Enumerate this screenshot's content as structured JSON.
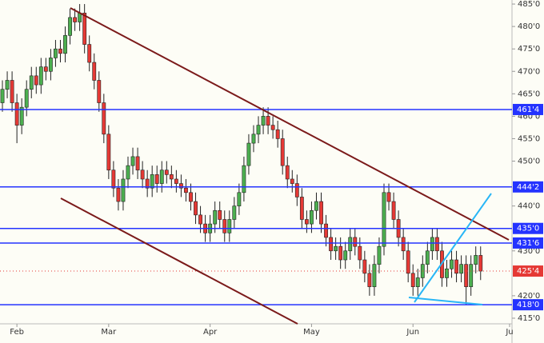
{
  "chart_data": {
    "type": "candlestick",
    "categories": [
      null,
      null,
      null,
      "Feb",
      null,
      null,
      null,
      null,
      null,
      null,
      null,
      null,
      null,
      null,
      null,
      null,
      null,
      null,
      null,
      null,
      null,
      null,
      "Mar",
      null,
      null,
      null,
      null,
      null,
      null,
      null,
      null,
      null,
      null,
      null,
      null,
      null,
      null,
      null,
      null,
      null,
      null,
      null,
      null,
      "Apr",
      null,
      null,
      null,
      null,
      null,
      null,
      null,
      null,
      null,
      null,
      null,
      null,
      null,
      null,
      null,
      null,
      null,
      null,
      null,
      null,
      "May",
      null,
      null,
      null,
      null,
      null,
      null,
      null,
      null,
      null,
      null,
      null,
      null,
      null,
      null,
      null,
      null,
      null,
      null,
      null,
      null,
      "Jun",
      null,
      null,
      null,
      null,
      null,
      null,
      null,
      null,
      null,
      null,
      null,
      null,
      null,
      null,
      null,
      null,
      null,
      null,
      null,
      "Ju"
    ],
    "open": [
      463,
      466,
      468,
      463,
      458,
      462,
      466,
      469,
      467,
      471,
      470,
      473,
      475,
      474,
      478,
      482,
      481,
      483,
      476,
      472,
      468,
      463,
      456,
      448,
      444,
      441,
      446,
      449,
      451,
      448,
      446,
      444,
      447,
      445,
      448,
      447,
      446,
      445,
      444,
      443,
      441,
      438,
      436,
      434,
      436,
      439,
      437,
      434,
      437,
      440,
      443,
      449,
      454,
      456,
      458,
      460,
      458,
      457,
      455,
      449,
      446,
      445,
      442,
      437,
      436,
      439,
      441,
      436,
      433,
      430,
      431,
      428,
      430,
      433,
      431,
      428,
      425,
      422,
      427,
      431,
      443,
      441,
      437,
      433,
      430,
      425,
      422,
      424,
      427,
      430,
      433,
      430,
      424,
      426,
      428,
      425,
      427,
      422,
      427,
      429,
      null,
      null,
      null,
      null,
      null,
      null
    ],
    "high": [
      468,
      470,
      470,
      465,
      464,
      468,
      471,
      471,
      473,
      473,
      475,
      477,
      477,
      480,
      484,
      484,
      485,
      485,
      478,
      474,
      470,
      465,
      458,
      450,
      446,
      448,
      451,
      453,
      453,
      450,
      448,
      449,
      449,
      450,
      450,
      449,
      448,
      447,
      446,
      445,
      443,
      440,
      438,
      438,
      441,
      441,
      439,
      439,
      442,
      445,
      451,
      456,
      458,
      460,
      462,
      462,
      460,
      459,
      457,
      451,
      448,
      447,
      444,
      439,
      441,
      443,
      443,
      438,
      435,
      433,
      433,
      432,
      435,
      435,
      433,
      430,
      427,
      429,
      433,
      445,
      445,
      443,
      439,
      435,
      432,
      427,
      426,
      429,
      432,
      435,
      435,
      432,
      428,
      430,
      430,
      429,
      429,
      429,
      431,
      431,
      null,
      null,
      null,
      null,
      null,
      null
    ],
    "low": [
      461,
      464,
      461,
      454,
      456,
      460,
      464,
      465,
      465,
      468,
      468,
      471,
      472,
      472,
      476,
      479,
      479,
      474,
      470,
      466,
      461,
      454,
      446,
      442,
      439,
      439,
      444,
      447,
      446,
      444,
      442,
      442,
      443,
      443,
      445,
      444,
      443,
      442,
      441,
      439,
      436,
      434,
      432,
      432,
      434,
      435,
      432,
      432,
      435,
      438,
      441,
      447,
      452,
      454,
      456,
      456,
      455,
      453,
      447,
      444,
      443,
      440,
      435,
      434,
      434,
      437,
      434,
      431,
      428,
      428,
      426,
      426,
      428,
      429,
      426,
      423,
      420,
      420,
      425,
      429,
      439,
      435,
      431,
      428,
      423,
      420,
      420,
      422,
      425,
      428,
      428,
      422,
      422,
      424,
      423,
      423,
      418,
      420,
      425,
      423.5,
      null,
      null,
      null,
      null,
      null,
      null
    ],
    "close": [
      466,
      468,
      463,
      458,
      462,
      466,
      469,
      467,
      471,
      470,
      473,
      475,
      474,
      478,
      482,
      481,
      483,
      476,
      472,
      468,
      463,
      456,
      448,
      444,
      441,
      446,
      449,
      451,
      448,
      446,
      444,
      447,
      445,
      448,
      447,
      446,
      445,
      444,
      443,
      441,
      438,
      436,
      434,
      436,
      439,
      437,
      434,
      437,
      440,
      443,
      449,
      454,
      456,
      458,
      460,
      458,
      457,
      455,
      449,
      446,
      445,
      442,
      437,
      436,
      439,
      441,
      436,
      433,
      430,
      431,
      428,
      430,
      433,
      431,
      428,
      425,
      422,
      427,
      431,
      443,
      441,
      437,
      433,
      430,
      425,
      422,
      424,
      427,
      430,
      433,
      430,
      424,
      426,
      428,
      425,
      427,
      422,
      427,
      429,
      425.5,
      null,
      null,
      null,
      null,
      null,
      null
    ],
    "up_color": "#4caf50",
    "down_color": "#e53935",
    "ylim": [
      413.75,
      485.9
    ],
    "yticks": [
      {
        "value": 485,
        "label": "485'0"
      },
      {
        "value": 480,
        "label": "480'0"
      },
      {
        "value": 475,
        "label": "475'0"
      },
      {
        "value": 470,
        "label": "470'0"
      },
      {
        "value": 465,
        "label": "465'0"
      },
      {
        "value": 460,
        "label": "460'0"
      },
      {
        "value": 455,
        "label": "455'0"
      },
      {
        "value": 450,
        "label": "450'0"
      },
      {
        "value": 440,
        "label": "440'0"
      },
      {
        "value": 430,
        "label": "430'0"
      },
      {
        "value": 420,
        "label": "420'0"
      },
      {
        "value": 415,
        "label": "415'0"
      }
    ],
    "levels": [
      {
        "value": 461.5,
        "label": "461'4"
      },
      {
        "value": 444.25,
        "label": "444'2"
      },
      {
        "value": 435,
        "label": "435'0"
      },
      {
        "value": 431.75,
        "label": "431'6"
      },
      {
        "value": 418,
        "label": "418'0"
      }
    ],
    "level_color": "#2433ff",
    "last_price": {
      "value": 425.5,
      "label": "425'4"
    },
    "last_price_color": "#e53935"
  }
}
